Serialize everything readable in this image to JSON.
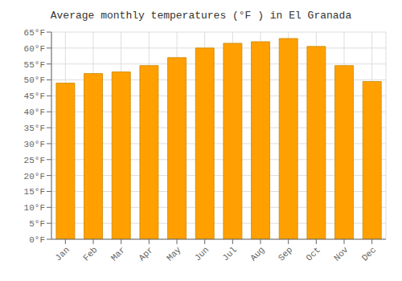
{
  "chart_data": {
    "type": "bar",
    "title": "Average monthly temperatures (°F ) in El Granada",
    "categories": [
      "Jan",
      "Feb",
      "Mar",
      "Apr",
      "May",
      "Jun",
      "Jul",
      "Aug",
      "Sep",
      "Oct",
      "Nov",
      "Dec"
    ],
    "values": [
      49,
      52,
      52.5,
      54.5,
      57,
      60,
      61.5,
      62,
      63,
      60.5,
      54.5,
      49.5
    ],
    "color": "#FFA000",
    "ylim": [
      0,
      65
    ],
    "yticks": [
      {
        "value": 0,
        "label": "0°F"
      },
      {
        "value": 5,
        "label": "5°F"
      },
      {
        "value": 10,
        "label": "10°F"
      },
      {
        "value": 15,
        "label": "15°F"
      },
      {
        "value": 20,
        "label": "20°F"
      },
      {
        "value": 25,
        "label": "25°F"
      },
      {
        "value": 30,
        "label": "30°F"
      },
      {
        "value": 35,
        "label": "35°F"
      },
      {
        "value": 40,
        "label": "40°F"
      },
      {
        "value": 45,
        "label": "45°F"
      },
      {
        "value": 50,
        "label": "50°F"
      },
      {
        "value": 55,
        "label": "55°F"
      },
      {
        "value": 60,
        "label": "60°F"
      },
      {
        "value": 65,
        "label": "65°F"
      }
    ],
    "grid": true
  }
}
